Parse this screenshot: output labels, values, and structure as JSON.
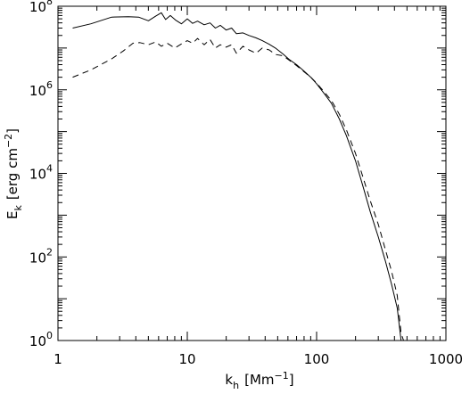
{
  "chart_data": {
    "type": "line",
    "xscale": "log",
    "yscale": "log",
    "xlim": [
      1,
      1000
    ],
    "ylim": [
      1,
      100000000
    ],
    "xlabel": {
      "main": "k",
      "sub": "h",
      "rest": "[Mm",
      "sup": "−1",
      "close": "]"
    },
    "ylabel": {
      "main": "E",
      "sub": "k",
      "rest": "[erg cm",
      "sup": "−2",
      "close": "]"
    },
    "x_ticks": [
      {
        "value": 1,
        "label": "1"
      },
      {
        "value": 10,
        "label": "10"
      },
      {
        "value": 100,
        "label": "100"
      },
      {
        "value": 1000,
        "label": "1000"
      }
    ],
    "y_ticks": [
      {
        "value": 1,
        "base": "10",
        "exp": "0"
      },
      {
        "value": 100,
        "base": "10",
        "exp": "2"
      },
      {
        "value": 10000,
        "base": "10",
        "exp": "4"
      },
      {
        "value": 1000000,
        "base": "10",
        "exp": "6"
      },
      {
        "value": 100000000,
        "base": "10",
        "exp": "8"
      }
    ],
    "series": [
      {
        "style": "solid",
        "x": [
          1.3,
          1.8,
          2.6,
          3.5,
          4.2,
          5.0,
          5.7,
          6.3,
          6.8,
          7.4,
          8.1,
          9.0,
          10.0,
          11.0,
          12.0,
          13.5,
          15.0,
          16.5,
          18.0,
          20.0,
          22.0,
          24.0,
          27.0,
          30.0,
          34.0,
          38.0,
          43.0,
          48.0,
          55.0,
          62.0,
          70.0,
          80.0,
          90.0,
          100.0,
          115.0,
          130.0,
          150.0,
          170.0,
          200.0,
          230.0,
          260.0,
          300.0,
          340.0,
          380.0,
          420.0,
          450.0
        ],
        "y": [
          30000000,
          38000000,
          55000000,
          56000000,
          55000000,
          45000000,
          58000000,
          70000000,
          48000000,
          60000000,
          47000000,
          38000000,
          50000000,
          39000000,
          44000000,
          36000000,
          40000000,
          30000000,
          35000000,
          27000000,
          30000000,
          22000000,
          23000000,
          20000000,
          17500000,
          15000000,
          12300000,
          10000000,
          7200000,
          5200000,
          4000000,
          2800000,
          2000000,
          1400000,
          800000,
          480000,
          200000,
          80000,
          20000,
          4500,
          1200,
          300,
          80,
          22,
          6,
          0.3
        ]
      },
      {
        "style": "dashed",
        "x": [
          1.3,
          1.8,
          2.6,
          3.2,
          3.8,
          4.3,
          5.0,
          5.7,
          6.3,
          7.0,
          8.0,
          9.0,
          10.0,
          11.0,
          12.0,
          13.5,
          15.0,
          16.5,
          18.0,
          20.0,
          22.0,
          24.0,
          27.0,
          30.0,
          34.0,
          38.0,
          43.0,
          48.0,
          55.0,
          62.0,
          70.0,
          80.0,
          90.0,
          100.0,
          115.0,
          130.0,
          150.0,
          170.0,
          200.0,
          230.0,
          260.0,
          300.0,
          340.0,
          380.0,
          420.0,
          450.0,
          470.0
        ],
        "y": [
          2000000,
          3000000,
          5500000,
          8500000,
          13000000,
          13500000,
          12000000,
          14000000,
          11000000,
          13000000,
          10000000,
          12500000,
          15000000,
          13000000,
          17000000,
          12000000,
          16000000,
          10000000,
          12000000,
          10500000,
          12000000,
          7500000,
          11000000,
          9000000,
          7500000,
          10000000,
          9000000,
          7000000,
          6500000,
          5000000,
          3800000,
          2700000,
          2000000,
          1450000,
          880000,
          560000,
          260000,
          110000,
          30000,
          7500,
          2200,
          600,
          150,
          45,
          12,
          1.5,
          0.5
        ]
      }
    ]
  }
}
